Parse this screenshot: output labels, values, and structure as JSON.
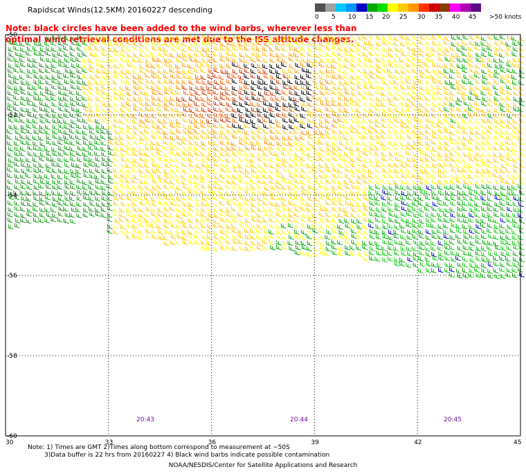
{
  "title": "Rapidscat Winds(12.5KM) 20160227 descending",
  "note": "Note: black circles have been added to the wind barbs, wherever less than optimal wind retrieval conditions are met due to the ISS altitude changes.",
  "legend": {
    "colors": [
      "#505050",
      "#a0a0a0",
      "#00c8ff",
      "#0096ff",
      "#0000c8",
      "#00aa00",
      "#00dd00",
      "#ffff00",
      "#ffcc00",
      "#ff9900",
      "#ff3300",
      "#cc0000",
      "#8b3a00",
      "#ff00ff",
      "#b000b0",
      "#5a0a8a"
    ],
    "labels": [
      "0",
      "5",
      "10",
      "15",
      "20",
      "25",
      "30",
      "35",
      "40",
      "45",
      ">50 knots"
    ]
  },
  "map": {
    "lon_ticks": [
      "30",
      "33",
      "36",
      "39",
      "42",
      "45"
    ],
    "lat_ticks": [
      "-50",
      "-52",
      "-54",
      "-56",
      "-58",
      "-60"
    ],
    "times": [
      "20:43",
      "20:44",
      "20:45"
    ]
  },
  "footer": {
    "line1": "Note: 1) Times are GMT 2)Times along bottom correspond to measurement at ~50S",
    "line2": "3)Data buffer is 22 hrs from 20160227 4) Black wind barbs indicate possible contamination",
    "credit": "NOAA/NESDIS/Center for Satellite Applications and Research"
  }
}
